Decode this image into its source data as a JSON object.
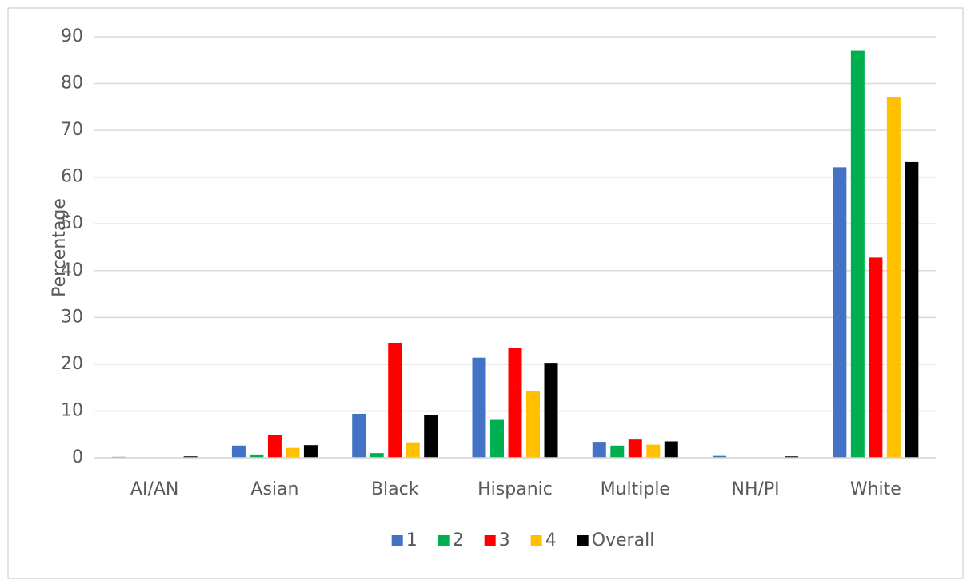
{
  "chart_data": {
    "type": "bar",
    "y_label": "Percentage",
    "categories": [
      "AI/AN",
      "Asian",
      "Black",
      "Hispanic",
      "Multiple",
      "NH/PI",
      "White"
    ],
    "series": [
      {
        "name": "1",
        "color": "#4472c4",
        "values": [
          0.2,
          2.6,
          9.4,
          21.4,
          3.4,
          0.4,
          62.1
        ]
      },
      {
        "name": "2",
        "color": "#00b050",
        "values": [
          0,
          0.7,
          1.0,
          8.1,
          2.6,
          0,
          87.0
        ]
      },
      {
        "name": "3",
        "color": "#ff0000",
        "values": [
          0,
          4.8,
          24.6,
          23.4,
          3.9,
          0,
          42.8
        ]
      },
      {
        "name": "4",
        "color": "#ffc000",
        "values": [
          0,
          2.1,
          3.3,
          14.2,
          2.8,
          0,
          77.1
        ]
      },
      {
        "name": "Overall",
        "color": "#000000",
        "values": [
          0.3,
          2.7,
          9.1,
          20.3,
          3.5,
          0.3,
          63.2
        ]
      }
    ],
    "ylim": [
      0,
      90
    ],
    "yticks": [
      0,
      10,
      20,
      30,
      40,
      50,
      60,
      70,
      80,
      90
    ],
    "grid": true,
    "legend": "bottom"
  }
}
